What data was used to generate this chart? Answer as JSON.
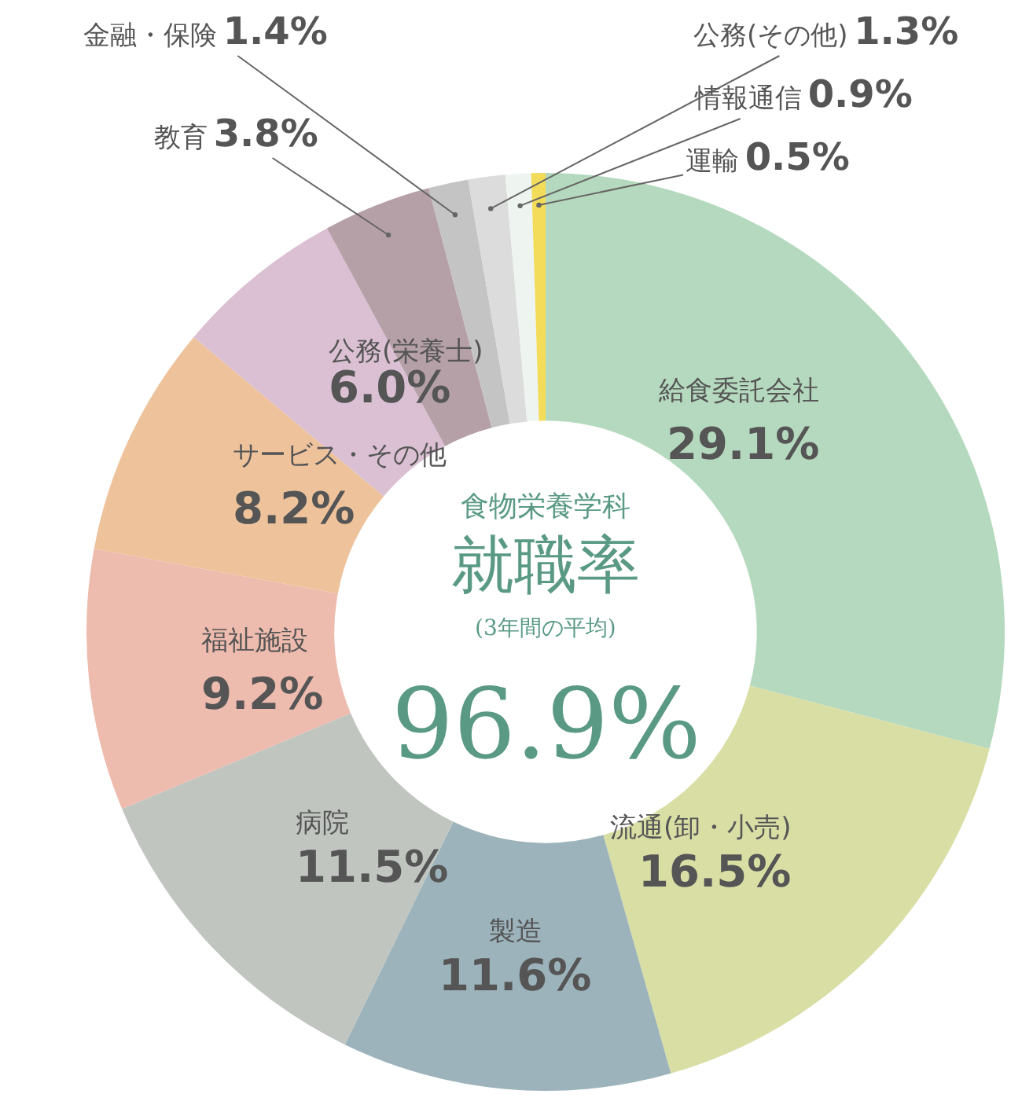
{
  "chart_data": {
    "type": "donut",
    "categories": [
      "給食委託会社",
      "流通(卸・小売)",
      "製造",
      "病院",
      "福祉施設",
      "サービス・その他",
      "公務(栄養士)",
      "教育",
      "金融・保険",
      "公務(その他)",
      "情報通信",
      "運輸"
    ],
    "values": [
      29.1,
      16.5,
      11.6,
      11.5,
      9.2,
      8.2,
      6.0,
      3.8,
      1.4,
      1.3,
      0.9,
      0.5
    ],
    "value_labels": [
      "29.1%",
      "16.5%",
      "11.6%",
      "11.5%",
      "9.2%",
      "8.2%",
      "6.0%",
      "3.8%",
      "1.4%",
      "1.3%",
      "0.9%",
      "0.5%"
    ],
    "colors": [
      "#b5d9be",
      "#d9dea5",
      "#9cb3bb",
      "#c0c5c0",
      "#eebcae",
      "#eec39c",
      "#dbc0d3",
      "#b5a0a8",
      "#c4c4c4",
      "#dcdcdc",
      "#eef4ef",
      "#f2dc5a"
    ],
    "annotations": [
      "食物栄養学科",
      "就職率",
      "(3年間の平均)",
      "96.9%"
    ]
  }
}
